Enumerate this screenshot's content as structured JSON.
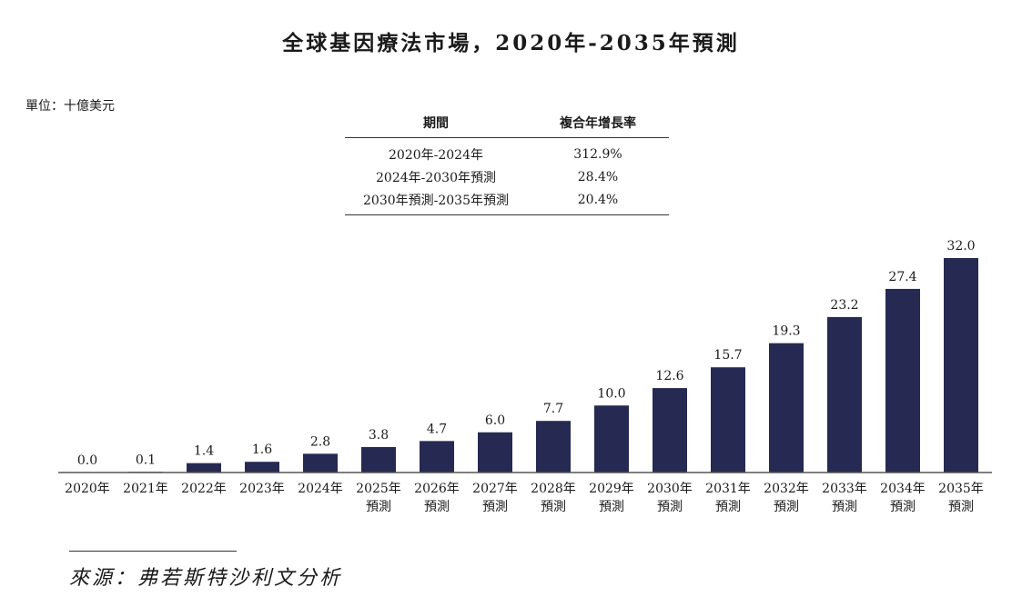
{
  "title": "全球基因療法市場，2020年-2035年預測",
  "unit": "單位：十億美元",
  "cagr_table": {
    "headers": [
      "期間",
      "複合年增長率"
    ],
    "rows": [
      {
        "period": "2020年-2024年",
        "rate": "312.9%"
      },
      {
        "period": "2024年-2030年預測",
        "rate": "28.4%"
      },
      {
        "period": "2030年預測-2035年預測",
        "rate": "20.4%"
      }
    ]
  },
  "chart_data": {
    "type": "bar",
    "categories": [
      [
        "2020年"
      ],
      [
        "2021年"
      ],
      [
        "2022年"
      ],
      [
        "2023年"
      ],
      [
        "2024年"
      ],
      [
        "2025年",
        "預測"
      ],
      [
        "2026年",
        "預測"
      ],
      [
        "2027年",
        "預測"
      ],
      [
        "2028年",
        "預測"
      ],
      [
        "2029年",
        "預測"
      ],
      [
        "2030年",
        "預測"
      ],
      [
        "2031年",
        "預測"
      ],
      [
        "2032年",
        "預測"
      ],
      [
        "2033年",
        "預測"
      ],
      [
        "2034年",
        "預測"
      ],
      [
        "2035年",
        "預測"
      ]
    ],
    "values": [
      0.0,
      0.1,
      1.4,
      1.6,
      2.8,
      3.8,
      4.7,
      6.0,
      7.7,
      10.0,
      12.6,
      15.7,
      19.3,
      23.2,
      27.4,
      32.0
    ],
    "value_labels": [
      "0.0",
      "0.1",
      "1.4",
      "1.6",
      "2.8",
      "3.8",
      "4.7",
      "6.0",
      "7.7",
      "10.0",
      "12.6",
      "15.7",
      "19.3",
      "23.2",
      "27.4",
      "32.0"
    ],
    "ylim": [
      0,
      32
    ],
    "bar_color": "#262a52"
  },
  "source": "來源：弗若斯特沙利文分析"
}
